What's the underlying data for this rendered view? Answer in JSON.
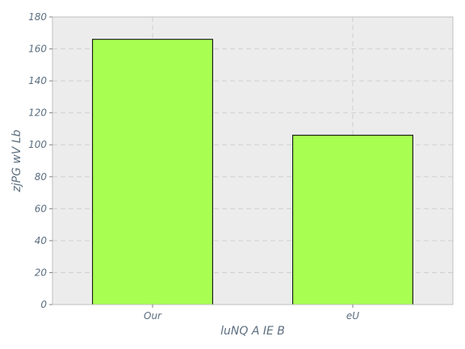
{
  "chart_data": {
    "type": "bar",
    "categories": [
      "Our",
      "eU"
    ],
    "values": [
      166,
      106
    ],
    "xlabel": "luNQ A IE B",
    "ylabel": "zjPG wV Lb",
    "ylim": [
      0,
      180
    ],
    "yticks": [
      0,
      20,
      40,
      60,
      80,
      100,
      120,
      140,
      160,
      180
    ],
    "grid": true
  },
  "colors": {
    "bar_fill": "#a8ff52",
    "bar_edge": "#000000",
    "plot_background": "#ececec",
    "grid": "#d0d0d0",
    "text": "#5d6f80"
  }
}
